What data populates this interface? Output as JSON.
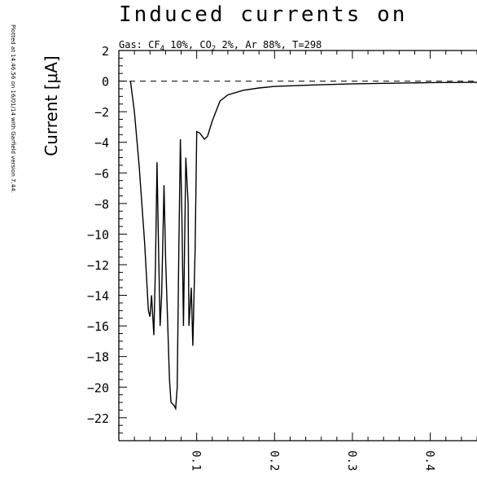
{
  "title": "Induced currents on",
  "side_note": "Plotted at 14.46.56 on 16/01/14 with Garfield version 7.44.",
  "gas_line": {
    "parts": [
      {
        "t": "Gas: CF",
        "sub": false
      },
      {
        "t": "4",
        "sub": true
      },
      {
        "t": " 10%, CO",
        "sub": false
      },
      {
        "t": "2",
        "sub": true
      },
      {
        "t": " 2%, Ar 88%, T=298",
        "sub": false
      }
    ]
  },
  "chart_data": {
    "type": "line",
    "title": "Induced currents on",
    "xlabel": "",
    "ylabel": "Current [μA]",
    "xlim": [
      0.0,
      0.46
    ],
    "ylim": [
      -23.5,
      2.0
    ],
    "x_ticks": [
      "0.1",
      "0.2",
      "0.3",
      "0.4"
    ],
    "x_tick_values": [
      0.1,
      0.2,
      0.3,
      0.4
    ],
    "y_ticks": [
      "2",
      "0",
      "−2",
      "−4",
      "−6",
      "−8",
      "−10",
      "−12",
      "−14",
      "−16",
      "−18",
      "−20",
      "−22"
    ],
    "y_tick_values": [
      2,
      0,
      -2,
      -4,
      -6,
      -8,
      -10,
      -12,
      -14,
      -16,
      -18,
      -20,
      -22
    ],
    "zero_line": "dashed",
    "grid": false,
    "series": [
      {
        "color": "#000000",
        "x": [
          0.015,
          0.02,
          0.026,
          0.033,
          0.038,
          0.04,
          0.042,
          0.045,
          0.047,
          0.049,
          0.051,
          0.053,
          0.055,
          0.058,
          0.06,
          0.065,
          0.067,
          0.071,
          0.073,
          0.075,
          0.077,
          0.079,
          0.081,
          0.083,
          0.086,
          0.089,
          0.09,
          0.093,
          0.095,
          0.098,
          0.1,
          0.104,
          0.11,
          0.114,
          0.12,
          0.13,
          0.14,
          0.16,
          0.18,
          0.2,
          0.25,
          0.3,
          0.35,
          0.4,
          0.46
        ],
        "values": [
          0,
          -2,
          -5.5,
          -10.5,
          -15,
          -15.4,
          -14,
          -16.6,
          -12,
          -5.3,
          -11,
          -16,
          -14,
          -6.8,
          -11.5,
          -19.5,
          -21,
          -21.2,
          -21.4,
          -20,
          -11,
          -3.8,
          -9,
          -16,
          -5,
          -8,
          -16,
          -13.5,
          -17.3,
          -11,
          -3.3,
          -3.4,
          -3.8,
          -3.6,
          -2.6,
          -1.3,
          -0.9,
          -0.6,
          -0.45,
          -0.35,
          -0.25,
          -0.18,
          -0.14,
          -0.1,
          -0.08
        ]
      }
    ]
  }
}
